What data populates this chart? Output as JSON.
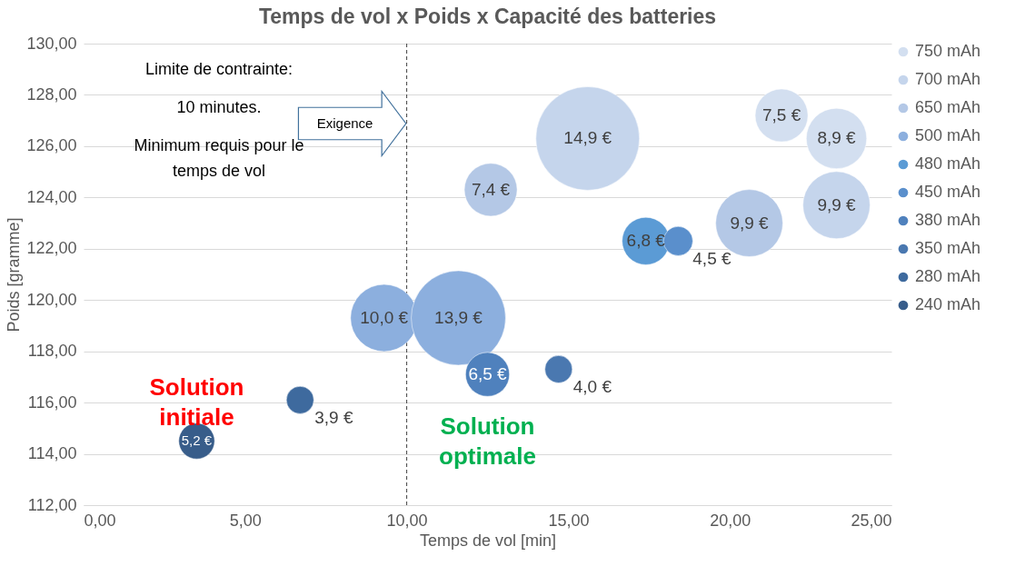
{
  "chart_data": {
    "type": "bubble",
    "title": "Temps de vol x Poids x Capacité des batteries",
    "xlabel": "Temps de vol [min]",
    "ylabel": "Poids [gramme]",
    "xlim": [
      0,
      25
    ],
    "xticks": [
      {
        "value": 0,
        "label": "0,00"
      },
      {
        "value": 5,
        "label": "5,00"
      },
      {
        "value": 10,
        "label": "10,00"
      },
      {
        "value": 15,
        "label": "15,00"
      },
      {
        "value": 20,
        "label": "20,00"
      },
      {
        "value": 25,
        "label": "25,00"
      }
    ],
    "ylim": [
      112,
      130
    ],
    "yticks": [
      {
        "value": 112,
        "label": "112,00"
      },
      {
        "value": 114,
        "label": "114,00"
      },
      {
        "value": 116,
        "label": "116,00"
      },
      {
        "value": 118,
        "label": "118,00"
      },
      {
        "value": 120,
        "label": "120,00"
      },
      {
        "value": 122,
        "label": "122,00"
      },
      {
        "value": 124,
        "label": "124,00"
      },
      {
        "value": 126,
        "label": "126,00"
      },
      {
        "value": 128,
        "label": "128,00"
      },
      {
        "value": 130,
        "label": "130,00"
      }
    ],
    "grid": "y",
    "legend": "right",
    "series": [
      {
        "name": "750 mAh",
        "color": "#d3dff0",
        "x": [
          21.6,
          23.3
        ],
        "values": [
          127.2,
          126.3
        ],
        "sizes": [
          0.26,
          0.34
        ]
      },
      {
        "name": "700 mAh",
        "color": "#c5d5ec",
        "x": [
          15.6,
          23.3
        ],
        "values": [
          126.3,
          123.7
        ],
        "sizes": [
          1,
          0.42
        ]
      },
      {
        "name": "650 mAh",
        "color": "#b4c8e6",
        "x": [
          12.6,
          20.6
        ],
        "values": [
          124.3,
          123.0
        ],
        "sizes": [
          0.26,
          0.42
        ]
      },
      {
        "name": "500 mAh",
        "color": "#8cafde",
        "x": [
          9.3,
          11.6
        ],
        "values": [
          119.3,
          119.3
        ],
        "sizes": [
          0.42,
          0.83
        ]
      },
      {
        "name": "480 mAh",
        "color": "#5b9bd5",
        "x": [
          17.4
        ],
        "values": [
          122.3
        ],
        "sizes": [
          0.21
        ]
      },
      {
        "name": "450 mAh",
        "color": "#5a8fcc",
        "x": [
          18.4
        ],
        "values": [
          122.3
        ],
        "sizes": [
          0.08
        ]
      },
      {
        "name": "380 mAh",
        "color": "#4f81bd",
        "x": [
          12.5
        ],
        "values": [
          117.1
        ],
        "sizes": [
          0.18
        ]
      },
      {
        "name": "350 mAh",
        "color": "#4a78b0",
        "x": [
          14.7
        ],
        "values": [
          117.3
        ],
        "sizes": [
          0.07
        ]
      },
      {
        "name": "280 mAh",
        "color": "#3e6a9e",
        "x": [
          6.7
        ],
        "values": [
          116.1
        ],
        "sizes": [
          0.07
        ]
      },
      {
        "name": "240 mAh",
        "color": "#385d8a",
        "x": [
          3.5
        ],
        "values": [
          114.5
        ],
        "sizes": [
          0.12
        ]
      }
    ],
    "ref_lines": [
      {
        "axis": "x",
        "value": 10,
        "label": "Exigence",
        "color": "#404040",
        "line_style": "dashed"
      }
    ],
    "annotations": [
      "Limite de contrainte:",
      "10 minutes.",
      "Minimum requis pour le temps de vol",
      {
        "text": "Solution initiale",
        "x": 3.5,
        "y": 114.5
      },
      {
        "text": "Solution optimale",
        "x": 12.5,
        "y": 117.1
      },
      {
        "text": "7,5 €",
        "x": 21.6,
        "y": 127.2
      },
      {
        "text": "8,9 €",
        "x": 23.3,
        "y": 126.3
      },
      {
        "text": "14,9 €",
        "x": 15.6,
        "y": 126.3
      },
      {
        "text": "9,9 €",
        "x": 23.3,
        "y": 123.7
      },
      {
        "text": "7,4 €",
        "x": 12.6,
        "y": 124.3
      },
      {
        "text": "9,9 €",
        "x": 20.6,
        "y": 123.0
      },
      {
        "text": "10,0 €",
        "x": 9.3,
        "y": 119.3
      },
      {
        "text": "13,9 €",
        "x": 11.6,
        "y": 119.3
      },
      {
        "text": "6,8 €",
        "x": 17.4,
        "y": 122.3
      },
      {
        "text": "4,5 €",
        "x": 18.4,
        "y": 122.3
      },
      {
        "text": "6,5 €",
        "x": 12.5,
        "y": 117.1
      },
      {
        "text": "4,0 €",
        "x": 14.7,
        "y": 117.3
      },
      {
        "text": "3,9 €",
        "x": 6.7,
        "y": 116.1
      },
      {
        "text": "5,2 €",
        "x": 3.5,
        "y": 114.5
      }
    ]
  }
}
